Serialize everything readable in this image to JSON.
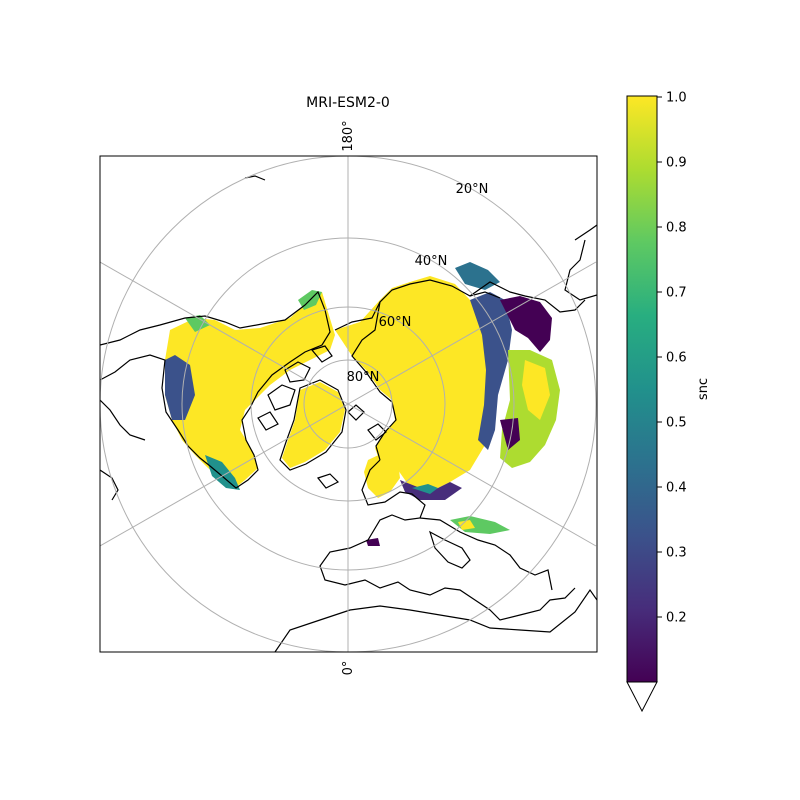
{
  "title": "MRI-ESM2-0",
  "map": {
    "projection": "north-polar-stereographic",
    "central_longitude": 0,
    "meridian_labels": [
      "180°",
      "0°"
    ],
    "latitude_labels": [
      "20°N",
      "40°N",
      "60°N",
      "80°N"
    ],
    "graticule_color": "#b0b0b0",
    "coastline_color": "#000000"
  },
  "colorbar": {
    "label": "snc",
    "colormap": "viridis",
    "vmin": 0.1,
    "vmax": 1.0,
    "ticks": [
      "0.2",
      "0.3",
      "0.4",
      "0.5",
      "0.6",
      "0.7",
      "0.8",
      "0.9",
      "1.0"
    ],
    "extend": "min"
  }
}
